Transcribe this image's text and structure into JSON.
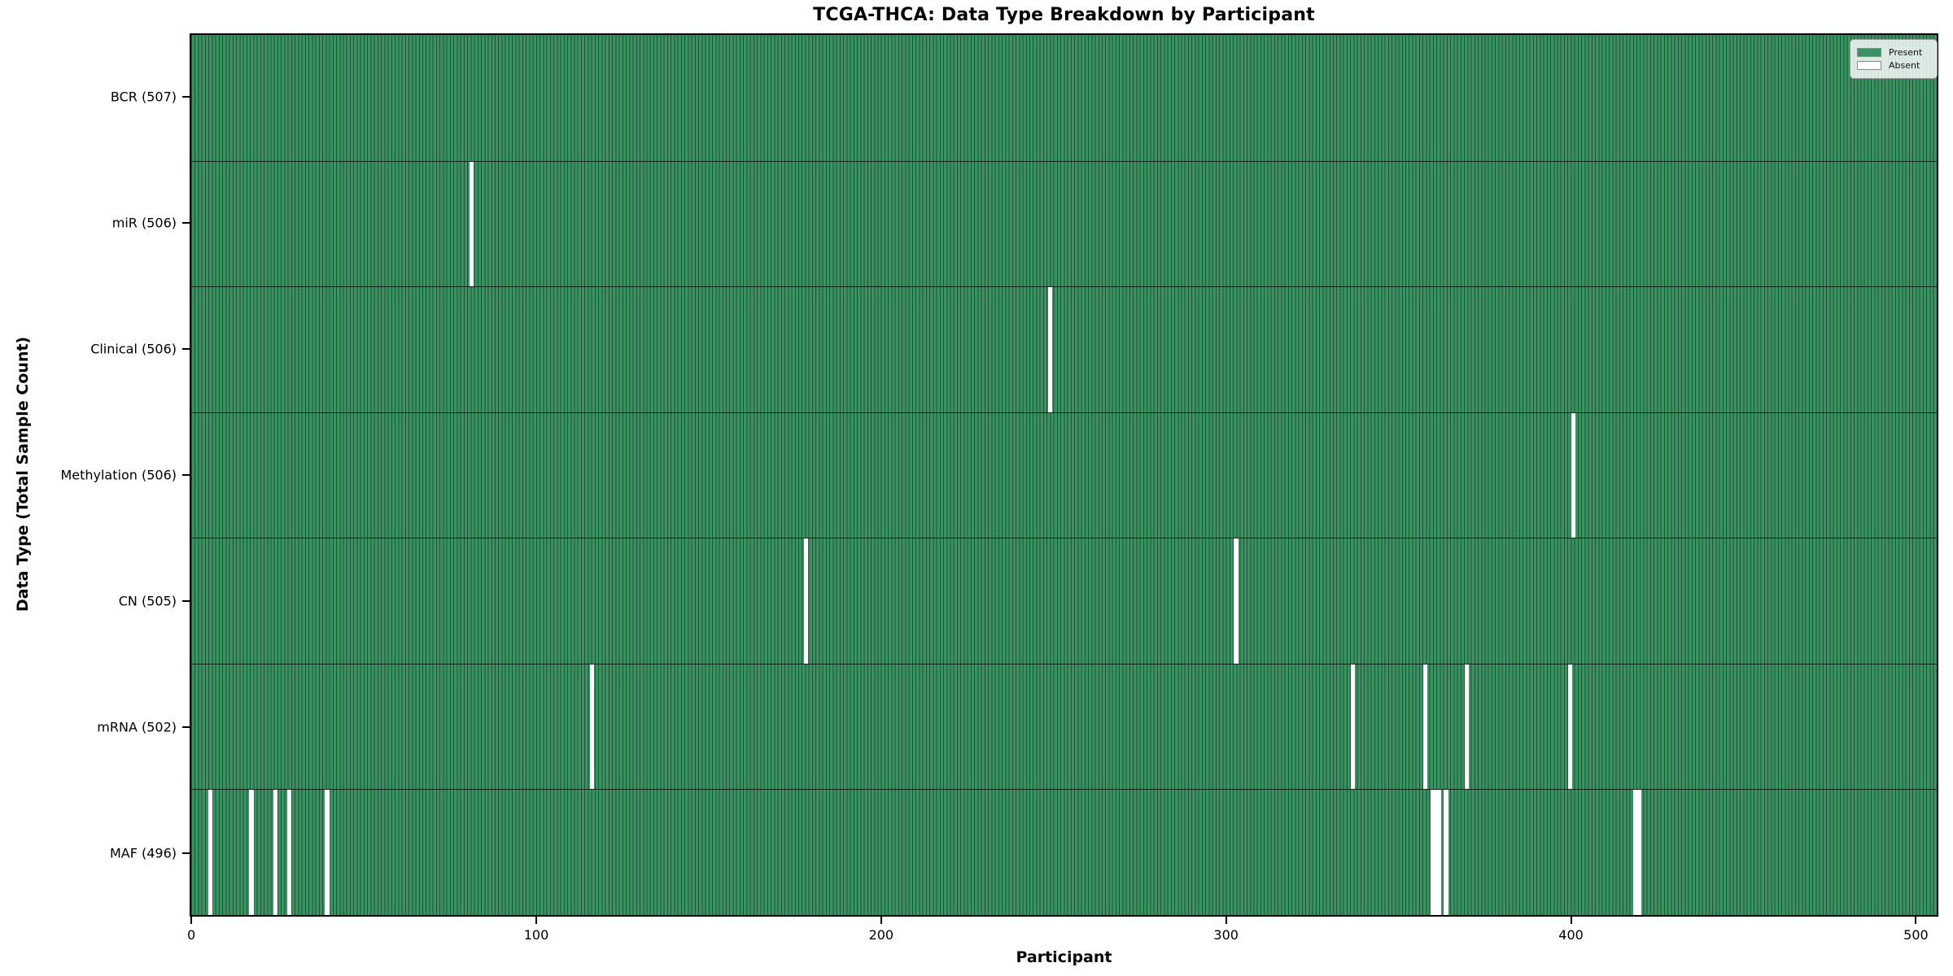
{
  "chart_data": {
    "type": "heatmap",
    "title": "TCGA-THCA: Data Type Breakdown by Participant",
    "xlabel": "Participant",
    "ylabel": "Data Type (Total Sample Count)",
    "total_participants": 507,
    "xlim": [
      -0.5,
      506.5
    ],
    "x_ticks": [
      0,
      100,
      200,
      300,
      400,
      500
    ],
    "grid": false,
    "legend_position": "upper right",
    "legend": [
      "Present",
      "Absent"
    ],
    "cell_states": {
      "present": "Present",
      "absent": "Absent"
    },
    "rows": [
      {
        "label": "BCR (507)",
        "data_type": "BCR",
        "present_count": 507,
        "absent_participants": []
      },
      {
        "label": "miR (506)",
        "data_type": "miR",
        "present_count": 506,
        "absent_participants": [
          81
        ]
      },
      {
        "label": "Clinical (506)",
        "data_type": "Clinical",
        "present_count": 506,
        "absent_participants": [
          249
        ]
      },
      {
        "label": "Methylation (506)",
        "data_type": "Methylation",
        "present_count": 506,
        "absent_participants": [
          401
        ]
      },
      {
        "label": "CN (505)",
        "data_type": "CN",
        "present_count": 505,
        "absent_participants": [
          178,
          303
        ]
      },
      {
        "label": "mRNA (502)",
        "data_type": "mRNA",
        "present_count": 502,
        "absent_participants": [
          116,
          337,
          358,
          370,
          400
        ]
      },
      {
        "label": "MAF (496)",
        "data_type": "MAF",
        "present_count": 496,
        "absent_participants": [
          5,
          17,
          24,
          28,
          39,
          360,
          361,
          362,
          364,
          419,
          420
        ]
      }
    ],
    "colors": {
      "present_fill": "#3C9263",
      "bar_edge": "#1B5434",
      "absent_fill": "#FFFFFF",
      "row_separator": "#0A140D",
      "legend_background": "#EDF2ED"
    }
  }
}
